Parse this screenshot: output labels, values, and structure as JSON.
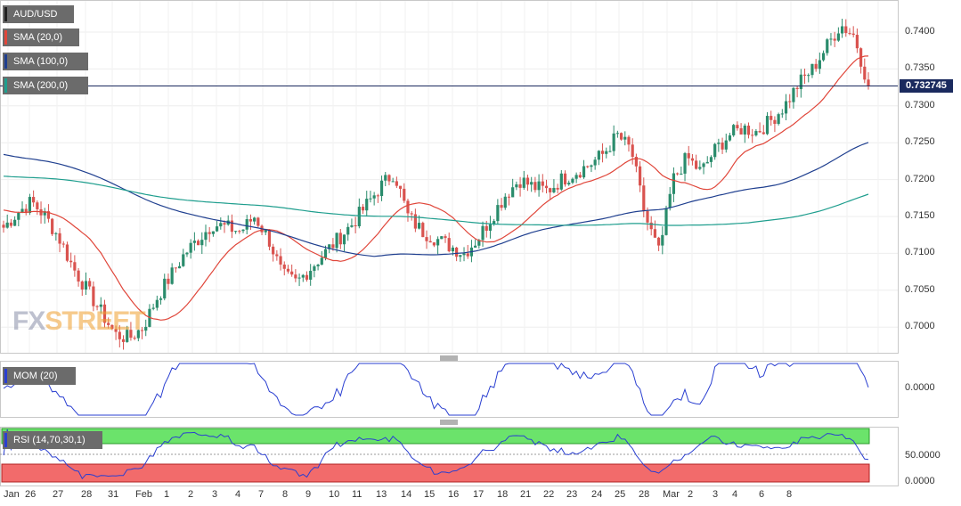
{
  "chart_data": {
    "type": "candlestick",
    "symbol": "AUD/USD",
    "last_price": "0.732745",
    "legend": {
      "main": [
        "AUD/USD",
        "SMA (20,0)",
        "SMA (100,0)",
        "SMA (200,0)"
      ],
      "mom": "MOM (20)",
      "rsi": "RSI (14,70,30,1)"
    },
    "colors": {
      "up": "#2a8c6c",
      "down": "#d9534f",
      "sma20": "#e0463a",
      "sma100": "#1f3f8f",
      "sma200": "#1f9e8e",
      "mom": "#2a3fd1",
      "rsi": "#2a3fd1",
      "overbought_zone": "#6be36b",
      "oversold_zone": "#f26b6b",
      "price_line": "#1a2a5e"
    },
    "price_axis": {
      "ticks": [
        "0.7400",
        "0.7350",
        "0.7300",
        "0.7250",
        "0.7200",
        "0.7150",
        "0.7100",
        "0.7050",
        "0.7000"
      ],
      "range": [
        0.6965,
        0.744
      ]
    },
    "mom_axis": {
      "ticks": [
        "0.0000"
      ]
    },
    "rsi_axis": {
      "ticks": [
        "50.0000",
        "0.0000"
      ]
    },
    "x_labels": [
      "Jan",
      "26",
      "27",
      "28",
      "31",
      "Feb",
      "1",
      "2",
      "3",
      "4",
      "7",
      "8",
      "9",
      "10",
      "11",
      "13",
      "14",
      "15",
      "16",
      "17",
      "18",
      "21",
      "22",
      "23",
      "24",
      "25",
      "28",
      "Mar",
      "2",
      "3",
      "4",
      "6",
      "8"
    ],
    "approx_close_path": [
      0.7135,
      0.7155,
      0.717,
      0.715,
      0.712,
      0.708,
      0.705,
      0.702,
      0.699,
      0.6985,
      0.7,
      0.704,
      0.707,
      0.71,
      0.712,
      0.714,
      0.7135,
      0.713,
      0.715,
      0.712,
      0.707,
      0.706,
      0.708,
      0.71,
      0.712,
      0.714,
      0.7165,
      0.719,
      0.721,
      0.715,
      0.713,
      0.712,
      0.711,
      0.71,
      0.712,
      0.715,
      0.718,
      0.72,
      0.719,
      0.7185,
      0.72,
      0.721,
      0.722,
      0.7235,
      0.726,
      0.724,
      0.715,
      0.71,
      0.72,
      0.723,
      0.721,
      0.724,
      0.726,
      0.727,
      0.7265,
      0.728,
      0.73,
      0.733,
      0.735,
      0.738,
      0.741,
      0.7395,
      0.7327
    ]
  }
}
